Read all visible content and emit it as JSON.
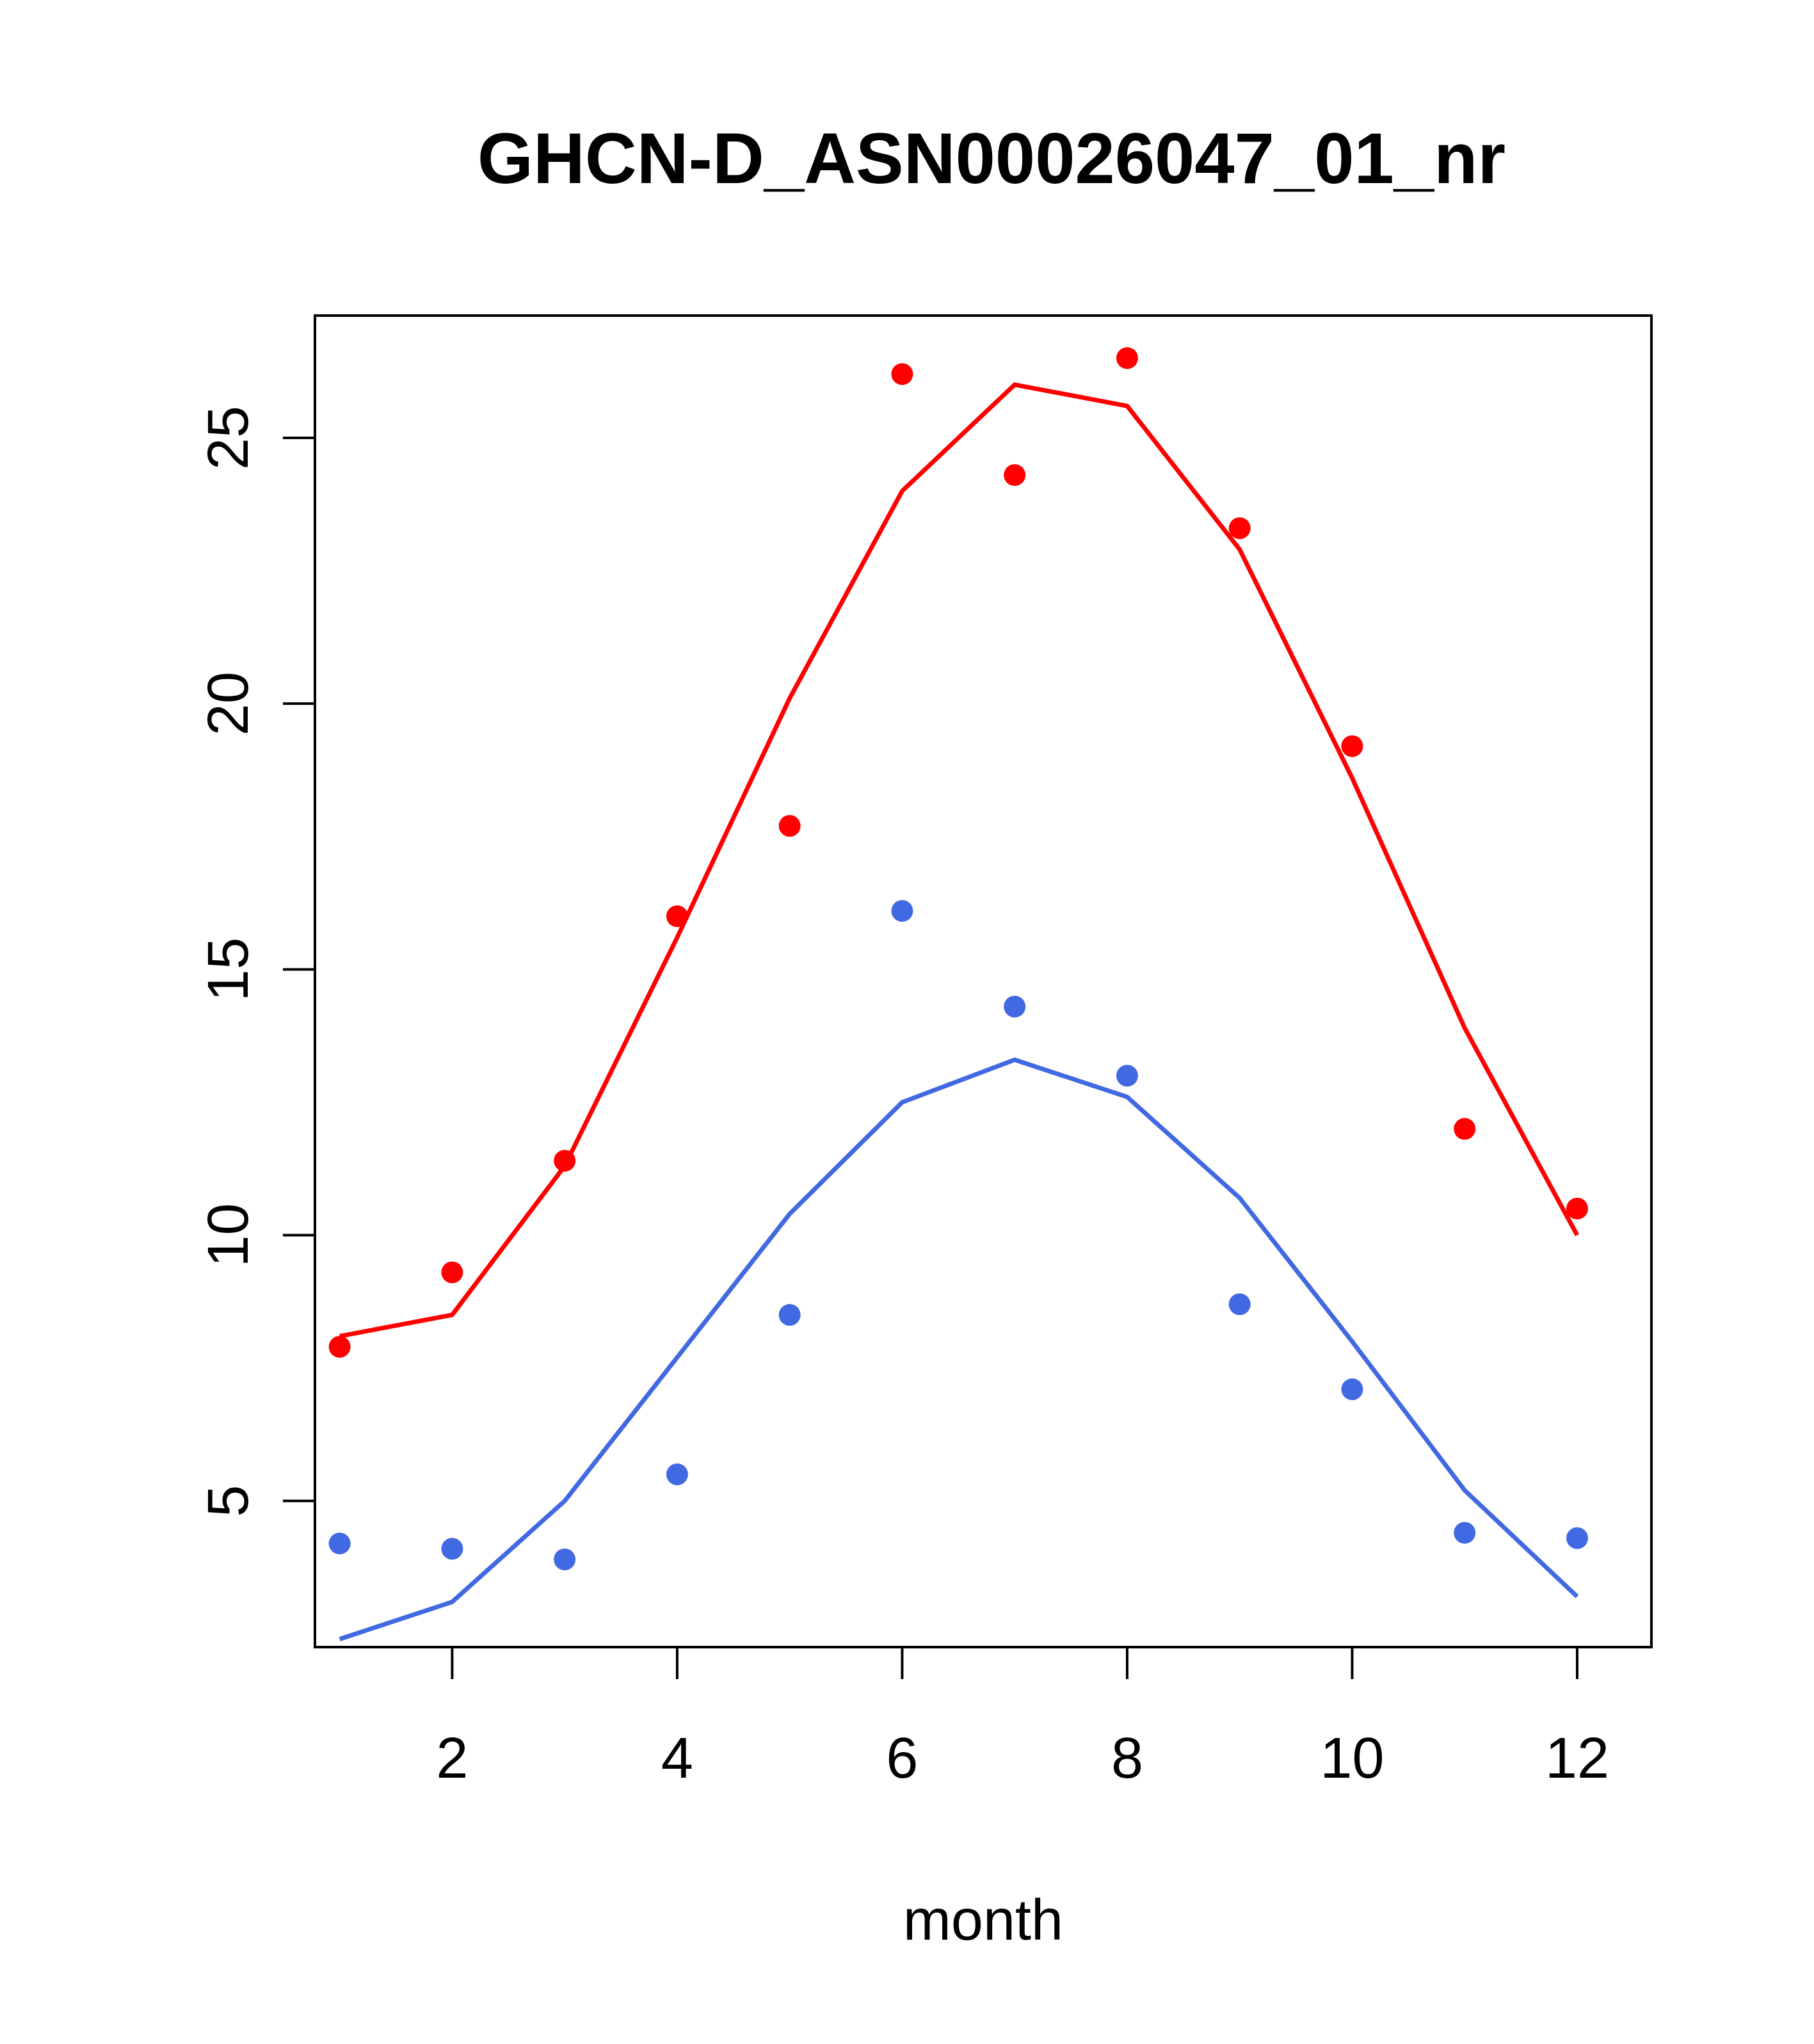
{
  "chart_data": {
    "type": "line",
    "title": "GHCN-D_ASN00026047_01_nr",
    "xlabel": "month",
    "ylabel": "",
    "xlim": [
      0.78,
      12.66
    ],
    "ylim": [
      2.25,
      27.3
    ],
    "x_ticks": [
      {
        "value": 2,
        "label": "2"
      },
      {
        "value": 4,
        "label": "4"
      },
      {
        "value": 6,
        "label": "6"
      },
      {
        "value": 8,
        "label": "8"
      },
      {
        "value": 10,
        "label": "10"
      },
      {
        "value": 12,
        "label": "12"
      }
    ],
    "y_ticks": [
      {
        "value": 5,
        "label": "5"
      },
      {
        "value": 10,
        "label": "10"
      },
      {
        "value": 15,
        "label": "15"
      },
      {
        "value": 20,
        "label": "20"
      },
      {
        "value": 25,
        "label": "25"
      }
    ],
    "grid": false,
    "x": [
      1,
      2,
      3,
      4,
      5,
      6,
      7,
      8,
      9,
      10,
      11,
      12
    ],
    "series": [
      {
        "color": "#ff0000",
        "line_values": [
          8.1,
          8.5,
          11.3,
          15.6,
          20.1,
          24.0,
          26.0,
          25.6,
          22.9,
          18.6,
          13.9,
          10.0
        ],
        "point_values": [
          7.9,
          9.3,
          11.4,
          16.0,
          17.7,
          26.2,
          24.3,
          26.5,
          23.3,
          19.2,
          12.0,
          10.5
        ]
      },
      {
        "color": "#4169e1",
        "line_values": [
          2.4,
          3.1,
          5.0,
          7.7,
          10.4,
          12.5,
          13.3,
          12.6,
          10.7,
          8.0,
          5.2,
          3.2
        ],
        "point_values": [
          4.2,
          4.1,
          3.9,
          5.5,
          8.5,
          16.1,
          14.3,
          13.0,
          8.7,
          7.1,
          4.4,
          4.3
        ]
      }
    ]
  }
}
